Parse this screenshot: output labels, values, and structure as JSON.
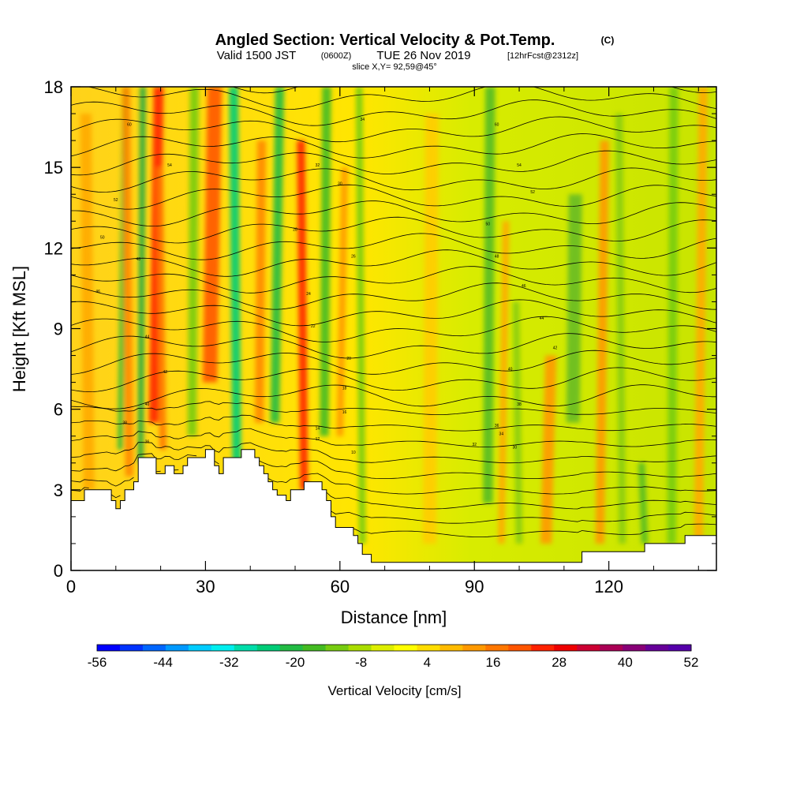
{
  "chart_data": {
    "type": "heatmap",
    "title": "Angled Section: Vertical Velocity & Pot.Temp.",
    "title_units": "(C)",
    "subtitle_valid": "Valid 1500 JST",
    "subtitle_utc": "(0600Z)",
    "subtitle_date": "TUE 26 Nov 2019",
    "subtitle_fcst": "[12hrFcst@2312z]",
    "subtitle_slice": "slice X,Y= 92,59@45°",
    "xlabel": "Distance [nm]",
    "ylabel": "Height [Kft MSL]",
    "xlim": [
      0,
      144
    ],
    "ylim": [
      0,
      18
    ],
    "x_ticks": [
      "0",
      "30",
      "60",
      "90",
      "120"
    ],
    "y_ticks": [
      "0",
      "3",
      "6",
      "9",
      "12",
      "15",
      "18"
    ],
    "colorbar": {
      "label": "Vertical Velocity [cm/s]",
      "tick_labels": [
        "-56",
        "-44",
        "-32",
        "-20",
        "-8",
        "4",
        "16",
        "28",
        "40",
        "52"
      ],
      "colors": [
        "#0000ff",
        "#0033ff",
        "#0066ff",
        "#0099ff",
        "#00ccff",
        "#00eeee",
        "#00ddaa",
        "#00cc77",
        "#22bb44",
        "#44bb22",
        "#77cc11",
        "#aadd00",
        "#ddee00",
        "#ffff00",
        "#ffdd00",
        "#ffbb00",
        "#ff9900",
        "#ff7700",
        "#ff5500",
        "#ff2200",
        "#ee0000",
        "#cc0033",
        "#aa0055",
        "#880077",
        "#660099",
        "#5500aa"
      ]
    },
    "series": [
      {
        "name": "Vertical Velocity",
        "kind": "filled-contour"
      },
      {
        "name": "Pot.Temp.",
        "kind": "contour-lines",
        "contour_labels": [
          "60",
          "54",
          "52",
          "50",
          "48",
          "46",
          "44",
          "42",
          "40",
          "38",
          "36",
          "34",
          "32",
          "30",
          "28",
          "26",
          "24",
          "22",
          "20",
          "18",
          "16",
          "14",
          "12",
          "10"
        ]
      }
    ],
    "terrain_kft": [
      [
        0,
        2.6
      ],
      [
        3,
        2.6
      ],
      [
        3,
        3.0
      ],
      [
        9,
        3.0
      ],
      [
        9,
        2.6
      ],
      [
        10,
        2.6
      ],
      [
        10,
        2.3
      ],
      [
        11,
        2.3
      ],
      [
        11,
        2.6
      ],
      [
        12,
        2.6
      ],
      [
        12,
        3.0
      ],
      [
        14,
        3.0
      ],
      [
        14,
        3.3
      ],
      [
        15,
        3.3
      ],
      [
        15,
        4.2
      ],
      [
        19,
        4.2
      ],
      [
        19,
        3.6
      ],
      [
        21,
        3.6
      ],
      [
        21,
        3.9
      ],
      [
        23,
        3.9
      ],
      [
        23,
        3.6
      ],
      [
        25,
        3.6
      ],
      [
        25,
        3.9
      ],
      [
        26,
        3.9
      ],
      [
        26,
        4.2
      ],
      [
        30,
        4.2
      ],
      [
        30,
        4.5
      ],
      [
        32,
        4.5
      ],
      [
        32,
        3.9
      ],
      [
        33,
        3.9
      ],
      [
        33,
        3.6
      ],
      [
        34,
        3.6
      ],
      [
        34,
        4.2
      ],
      [
        38,
        4.2
      ],
      [
        38,
        4.5
      ],
      [
        41,
        4.5
      ],
      [
        41,
        4.2
      ],
      [
        42,
        4.2
      ],
      [
        42,
        3.9
      ],
      [
        43,
        3.9
      ],
      [
        43,
        3.6
      ],
      [
        44,
        3.6
      ],
      [
        44,
        3.3
      ],
      [
        45,
        3.3
      ],
      [
        45,
        3.0
      ],
      [
        46,
        3.0
      ],
      [
        46,
        2.8
      ],
      [
        48,
        2.8
      ],
      [
        48,
        2.6
      ],
      [
        49,
        2.6
      ],
      [
        49,
        3.0
      ],
      [
        52,
        3.0
      ],
      [
        52,
        3.3
      ],
      [
        56,
        3.3
      ],
      [
        56,
        3.0
      ],
      [
        57,
        3.0
      ],
      [
        57,
        2.6
      ],
      [
        58,
        2.6
      ],
      [
        58,
        2.0
      ],
      [
        59,
        2.0
      ],
      [
        59,
        1.6
      ],
      [
        63,
        1.6
      ],
      [
        63,
        1.3
      ],
      [
        64,
        1.3
      ],
      [
        64,
        1.0
      ],
      [
        65,
        1.0
      ],
      [
        65,
        0.6
      ],
      [
        67,
        0.6
      ],
      [
        67,
        0.3
      ],
      [
        114,
        0.3
      ],
      [
        114,
        0.7
      ],
      [
        128,
        0.7
      ],
      [
        128,
        1.0
      ],
      [
        137,
        1.0
      ],
      [
        137,
        1.3
      ],
      [
        144,
        1.3
      ]
    ]
  }
}
